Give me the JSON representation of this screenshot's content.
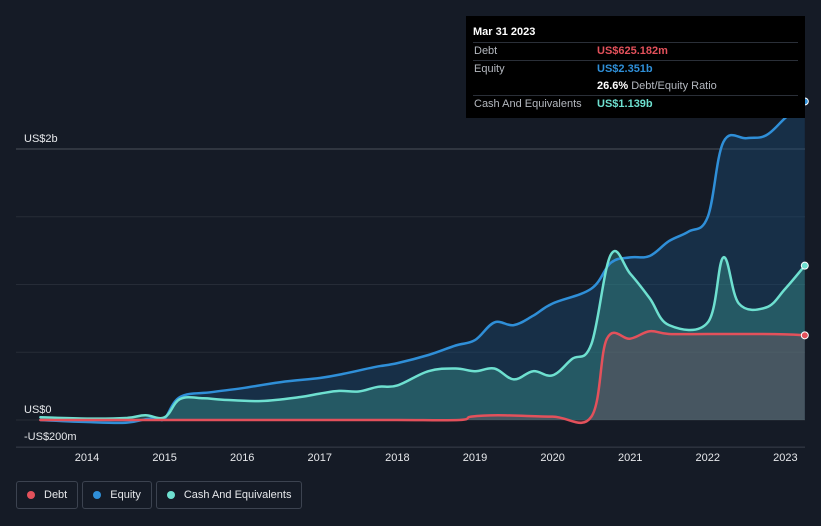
{
  "tooltip": {
    "date": "Mar 31 2023",
    "debt_label": "Debt",
    "debt_value": "US$625.182m",
    "equity_label": "Equity",
    "equity_value": "US$2.351b",
    "ratio_value": "26.6%",
    "ratio_label": "Debt/Equity Ratio",
    "cash_label": "Cash And Equivalents",
    "cash_value": "US$1.139b"
  },
  "legend": {
    "debt": "Debt",
    "equity": "Equity",
    "cash": "Cash And Equivalents"
  },
  "colors": {
    "debt": "#e3515b",
    "equity": "#2f8fd8",
    "cash": "#6ee0d0",
    "background": "#151b26"
  },
  "chart_data": {
    "type": "area",
    "y_tick_labels": [
      "US$2b",
      "US$0",
      "-US$200m"
    ],
    "x_tick_labels": [
      "2014",
      "2015",
      "2016",
      "2017",
      "2018",
      "2019",
      "2020",
      "2021",
      "2022",
      "2023"
    ],
    "ylim": [
      -200,
      2400
    ],
    "yunit": "US$m",
    "series": [
      {
        "name": "Debt",
        "x": [
          2013.4,
          2014.9,
          2015.0,
          2016.0,
          2017.0,
          2018.0,
          2018.8,
          2018.95,
          2019.3,
          2020.0,
          2020.5,
          2020.7,
          2021.0,
          2021.25,
          2021.5,
          2022.0,
          2022.5,
          2023.0,
          2023.25
        ],
        "values": [
          0,
          0,
          0,
          0,
          0,
          0,
          0,
          25,
          35,
          25,
          25,
          600,
          600,
          655,
          635,
          635,
          635,
          632,
          625
        ]
      },
      {
        "name": "Equity",
        "x": [
          2013.4,
          2014.0,
          2014.5,
          2014.75,
          2014.9,
          2015.0,
          2015.2,
          2015.6,
          2016.0,
          2016.5,
          2017.0,
          2017.3,
          2017.7,
          2018.0,
          2018.4,
          2018.75,
          2019.0,
          2019.25,
          2019.5,
          2019.75,
          2020.0,
          2020.5,
          2020.75,
          2021.0,
          2021.25,
          2021.5,
          2021.75,
          2022.0,
          2022.2,
          2022.5,
          2022.75,
          2023.0,
          2023.25
        ],
        "values": [
          0,
          -15,
          -20,
          5,
          15,
          10,
          170,
          205,
          235,
          280,
          310,
          340,
          390,
          420,
          480,
          550,
          590,
          720,
          700,
          770,
          860,
          970,
          1160,
          1200,
          1210,
          1320,
          1390,
          1500,
          2050,
          2080,
          2100,
          2230,
          2351
        ]
      },
      {
        "name": "Cash And Equivalents",
        "x": [
          2013.4,
          2014.0,
          2014.5,
          2014.75,
          2015.0,
          2015.2,
          2015.5,
          2015.75,
          2016.25,
          2016.75,
          2017.0,
          2017.25,
          2017.5,
          2017.75,
          2018.0,
          2018.4,
          2018.75,
          2019.0,
          2019.25,
          2019.5,
          2019.75,
          2020.0,
          2020.25,
          2020.5,
          2020.75,
          2021.0,
          2021.25,
          2021.5,
          2022.0,
          2022.2,
          2022.4,
          2022.75,
          2023.0,
          2023.25
        ],
        "values": [
          20,
          10,
          15,
          35,
          20,
          155,
          160,
          150,
          140,
          170,
          195,
          215,
          210,
          245,
          255,
          360,
          380,
          360,
          380,
          300,
          360,
          330,
          450,
          560,
          1220,
          1080,
          900,
          700,
          720,
          1200,
          860,
          830,
          970,
          1139
        ]
      }
    ]
  }
}
